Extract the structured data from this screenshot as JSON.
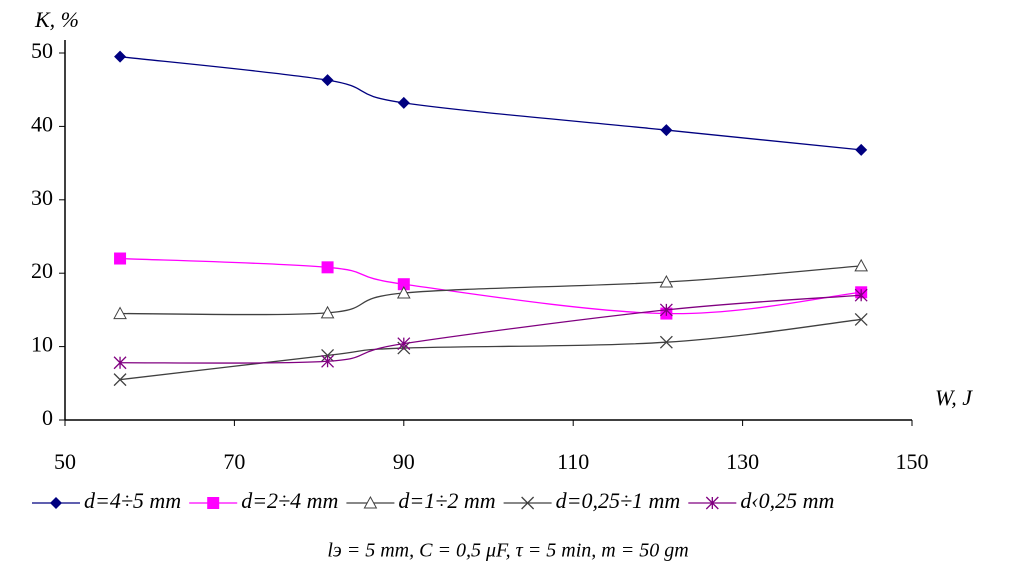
{
  "chart_data": {
    "type": "line",
    "y_label": "K, %",
    "x_label": "W, J",
    "x": [
      56.5,
      81,
      90,
      121,
      144
    ],
    "xlim": [
      50,
      150
    ],
    "xticks": [
      50,
      70,
      90,
      110,
      130,
      150
    ],
    "ylim": [
      0,
      50
    ],
    "yticks": [
      0,
      10,
      20,
      30,
      40,
      50
    ],
    "grid": false,
    "legend": "bottom",
    "series": [
      {
        "name": "d=4÷5 mm",
        "color": "#000080",
        "marker": "diamond",
        "values": [
          49.5,
          46.3,
          43.2,
          39.5,
          36.8
        ]
      },
      {
        "name": "d=2÷4 mm",
        "color": "#ff00ff",
        "marker": "square",
        "values": [
          22,
          20.8,
          18.5,
          14.5,
          17.4
        ]
      },
      {
        "name": "d=1÷2 mm",
        "color": "#404040",
        "marker": "triangle",
        "values": [
          14.5,
          14.6,
          17.3,
          18.8,
          21
        ]
      },
      {
        "name": "d=0,25÷1 mm",
        "color": "#404040",
        "marker": "x",
        "values": [
          5.5,
          8.8,
          9.8,
          10.6,
          13.7
        ]
      },
      {
        "name": "d‹0,25 mm",
        "color": "#800080",
        "marker": "star",
        "values": [
          7.8,
          8,
          10.4,
          15,
          17
        ]
      }
    ],
    "note": "lэ = 5 mm,    C = 0,5 μF,    τ = 5 min,    m  = 50 gm"
  }
}
